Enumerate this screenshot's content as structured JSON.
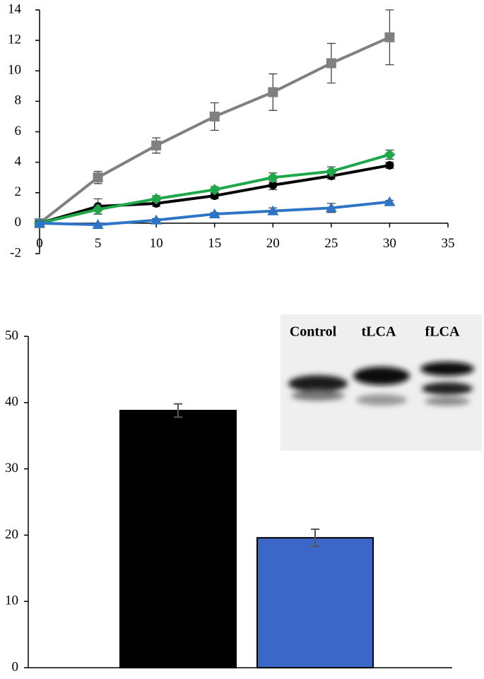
{
  "chart_data": [
    {
      "type": "line",
      "x": [
        0,
        5,
        10,
        15,
        20,
        25,
        30
      ],
      "xlim": [
        0,
        35
      ],
      "xticks": [
        0,
        5,
        10,
        15,
        20,
        25,
        30,
        35
      ],
      "ylim": [
        -2,
        14
      ],
      "yticks": [
        -2,
        0,
        2,
        4,
        6,
        8,
        10,
        12,
        14
      ],
      "series": [
        {
          "color": "#808080",
          "marker": "square",
          "values": [
            0,
            3.0,
            5.1,
            7.0,
            8.6,
            10.5,
            12.2
          ],
          "errors": [
            0.1,
            0.4,
            0.5,
            0.9,
            1.2,
            1.3,
            1.8
          ]
        },
        {
          "color": "#000000",
          "marker": "circle",
          "values": [
            0,
            1.1,
            1.3,
            1.8,
            2.5,
            3.1,
            3.8
          ],
          "errors": [
            0.1,
            0.5,
            0.2,
            0.2,
            0.3,
            0.2,
            0.2
          ]
        },
        {
          "color": "#1fa84a",
          "marker": "diamond",
          "values": [
            0,
            0.9,
            1.6,
            2.2,
            3.0,
            3.4,
            4.5
          ],
          "errors": [
            0.1,
            0.3,
            0.2,
            0.2,
            0.3,
            0.3,
            0.3
          ]
        },
        {
          "color": "#2e75c6",
          "marker": "triangle",
          "values": [
            0,
            -0.1,
            0.2,
            0.6,
            0.8,
            1.0,
            1.4
          ],
          "errors": [
            0.1,
            0.1,
            0.1,
            0.1,
            0.2,
            0.3,
            0.1
          ]
        }
      ]
    },
    {
      "type": "bar",
      "categories": [
        null,
        null
      ],
      "values": [
        38.8,
        19.6
      ],
      "errors": [
        1.0,
        1.3
      ],
      "colors": [
        "#000000",
        "#3a67c8"
      ],
      "ylim": [
        0,
        50
      ],
      "yticks": [
        0,
        10,
        20,
        30,
        40,
        50
      ],
      "inset_labels": [
        "Control",
        "tLCA",
        "fLCA"
      ]
    }
  ]
}
